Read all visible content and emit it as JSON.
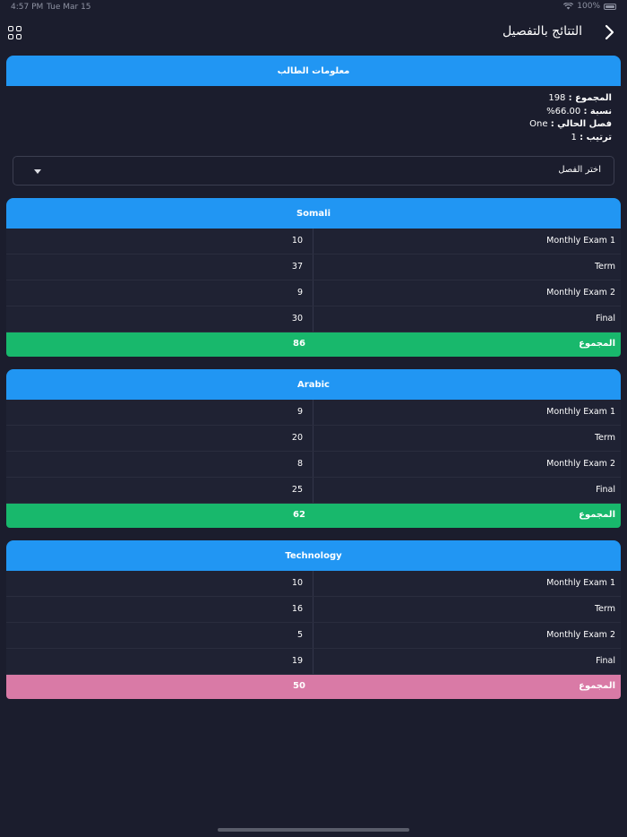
{
  "status": {
    "time": "4:57 PM",
    "date": "Tue Mar 15",
    "battery": "100%"
  },
  "header": {
    "title": "التتائج بالتفصيل",
    "back_icon": "chevron-right-icon",
    "menu_icon": "grid-icon"
  },
  "student_info": {
    "title": "معلومات الطالب",
    "total_label": "المجموع :",
    "total_value": "198",
    "percent_label": "نسبة :",
    "percent_value": "66.00%",
    "class_label": "فصل الحالي :",
    "class_value": "One",
    "rank_label": "ترتيب :",
    "rank_value": "1"
  },
  "class_select": {
    "placeholder": "اختر الفصل"
  },
  "colors": {
    "background": "#1b1d2d",
    "header_blue": "#2196f3",
    "total_green": "#18b86c",
    "total_pink": "#d97aa6"
  },
  "subjects": [
    {
      "name": "Somali",
      "rows": [
        {
          "exam": "Monthly Exam 1",
          "score": "10"
        },
        {
          "exam": "Term",
          "score": "37"
        },
        {
          "exam": "Monthly Exam 2",
          "score": "9"
        },
        {
          "exam": "Final",
          "score": "30"
        }
      ],
      "total_label": "المجموع",
      "total": "86",
      "total_color": "#18b86c"
    },
    {
      "name": "Arabic",
      "rows": [
        {
          "exam": "Monthly Exam 1",
          "score": "9"
        },
        {
          "exam": "Term",
          "score": "20"
        },
        {
          "exam": "Monthly Exam 2",
          "score": "8"
        },
        {
          "exam": "Final",
          "score": "25"
        }
      ],
      "total_label": "المجموع",
      "total": "62",
      "total_color": "#18b86c"
    },
    {
      "name": "Technology",
      "rows": [
        {
          "exam": "Monthly Exam 1",
          "score": "10"
        },
        {
          "exam": "Term",
          "score": "16"
        },
        {
          "exam": "Monthly Exam 2",
          "score": "5"
        },
        {
          "exam": "Final",
          "score": "19"
        }
      ],
      "total_label": "المجموع",
      "total": "50",
      "total_color": "#d97aa6"
    }
  ]
}
